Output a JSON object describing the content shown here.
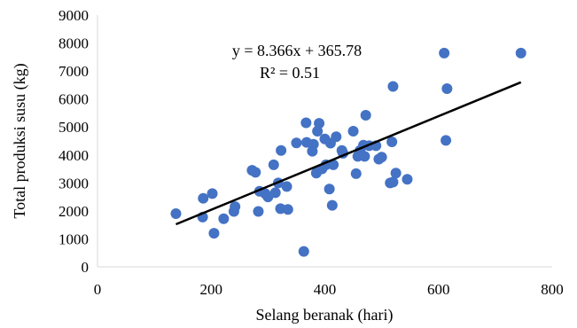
{
  "chart_data": {
    "type": "scatter",
    "title": "",
    "xlabel": "Selang beranak (hari)",
    "ylabel": "Total produksi susu (kg)",
    "xlim": [
      0,
      800
    ],
    "ylim": [
      0,
      9000
    ],
    "x_ticks": [
      "0",
      "200",
      "400",
      "600",
      "800"
    ],
    "y_ticks": [
      "0",
      "1000",
      "2000",
      "3000",
      "4000",
      "5000",
      "6000",
      "7000",
      "8000",
      "9000"
    ],
    "grid": false,
    "legend": "none",
    "marker_color": "#4472C4",
    "trendline": {
      "slope": 8.366,
      "intercept": 365.78,
      "x_range": [
        138,
        745
      ],
      "color": "#000000",
      "equation_label": "y = 8.366x + 365.78",
      "r2_label": "R² = 0.51"
    },
    "points": [
      [
        138,
        1900
      ],
      [
        185,
        1780
      ],
      [
        186,
        2450
      ],
      [
        202,
        2620
      ],
      [
        205,
        1200
      ],
      [
        222,
        1720
      ],
      [
        240,
        1980
      ],
      [
        242,
        2150
      ],
      [
        272,
        3450
      ],
      [
        278,
        3380
      ],
      [
        283,
        1980
      ],
      [
        285,
        2700
      ],
      [
        295,
        2620
      ],
      [
        300,
        2500
      ],
      [
        310,
        3650
      ],
      [
        313,
        2650
      ],
      [
        318,
        3000
      ],
      [
        322,
        2080
      ],
      [
        323,
        4160
      ],
      [
        333,
        2870
      ],
      [
        335,
        2050
      ],
      [
        350,
        4430
      ],
      [
        363,
        550
      ],
      [
        367,
        5150
      ],
      [
        368,
        4450
      ],
      [
        378,
        4130
      ],
      [
        380,
        4380
      ],
      [
        385,
        3350
      ],
      [
        387,
        4850
      ],
      [
        390,
        5130
      ],
      [
        395,
        3500
      ],
      [
        400,
        4570
      ],
      [
        402,
        3650
      ],
      [
        408,
        2780
      ],
      [
        410,
        4420
      ],
      [
        413,
        2200
      ],
      [
        415,
        3650
      ],
      [
        420,
        4650
      ],
      [
        430,
        4160
      ],
      [
        432,
        4060
      ],
      [
        450,
        4850
      ],
      [
        455,
        3330
      ],
      [
        458,
        3950
      ],
      [
        462,
        4160
      ],
      [
        468,
        4350
      ],
      [
        470,
        3950
      ],
      [
        472,
        5420
      ],
      [
        478,
        4330
      ],
      [
        490,
        4330
      ],
      [
        495,
        3850
      ],
      [
        500,
        3920
      ],
      [
        515,
        3000
      ],
      [
        518,
        4470
      ],
      [
        520,
        3030
      ],
      [
        520,
        6450
      ],
      [
        525,
        3350
      ],
      [
        545,
        3130
      ],
      [
        610,
        7640
      ],
      [
        613,
        4520
      ],
      [
        615,
        6370
      ],
      [
        745,
        7640
      ]
    ]
  }
}
